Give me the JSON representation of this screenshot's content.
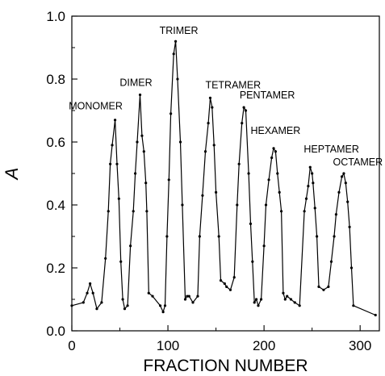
{
  "chart_data": {
    "type": "line",
    "xlabel": "FRACTION NUMBER",
    "ylabel": "A",
    "xlim": [
      0,
      320
    ],
    "ylim": [
      0,
      1.0
    ],
    "x_ticks": [
      0,
      100,
      200,
      300
    ],
    "x_tick_labels": [
      "0",
      "100",
      "200",
      "300"
    ],
    "y_ticks": [
      0,
      0.2,
      0.4,
      0.6,
      0.8,
      1.0
    ],
    "y_tick_labels": [
      "0.0",
      "0.2",
      "0.4",
      "0.6",
      "0.8",
      "1.0"
    ],
    "grid": false,
    "series": [
      {
        "x": [
          0,
          12,
          16,
          19,
          22,
          26,
          31,
          35,
          38,
          40,
          42,
          45,
          47,
          49,
          51,
          53,
          55,
          58,
          61,
          64,
          66,
          68,
          71,
          73,
          75,
          77,
          78,
          80,
          84,
          92,
          95,
          97,
          99,
          101,
          103,
          106,
          108,
          110,
          113,
          115,
          118,
          120,
          122,
          126,
          131,
          133,
          136,
          139,
          142,
          144,
          146,
          148,
          150,
          153,
          155,
          159,
          161,
          165,
          169,
          172,
          174,
          177,
          179,
          181,
          184,
          186,
          188,
          190,
          192,
          194,
          197,
          200,
          202,
          205,
          208,
          210,
          212,
          214,
          216,
          218,
          220,
          222,
          224,
          228,
          232,
          237,
          242,
          244,
          246,
          248,
          250,
          251,
          253,
          255,
          257,
          262,
          267,
          270,
          273,
          275,
          278,
          281,
          283,
          285,
          287,
          289,
          291,
          293,
          316
        ],
        "y": [
          0.08,
          0.09,
          0.12,
          0.15,
          0.12,
          0.07,
          0.09,
          0.23,
          0.38,
          0.53,
          0.59,
          0.67,
          0.53,
          0.42,
          0.22,
          0.1,
          0.07,
          0.08,
          0.27,
          0.38,
          0.5,
          0.6,
          0.75,
          0.62,
          0.57,
          0.47,
          0.38,
          0.12,
          0.11,
          0.08,
          0.06,
          0.08,
          0.3,
          0.48,
          0.69,
          0.88,
          0.92,
          0.8,
          0.6,
          0.4,
          0.1,
          0.11,
          0.11,
          0.09,
          0.11,
          0.3,
          0.43,
          0.57,
          0.66,
          0.74,
          0.71,
          0.59,
          0.44,
          0.3,
          0.16,
          0.15,
          0.14,
          0.13,
          0.17,
          0.4,
          0.53,
          0.66,
          0.71,
          0.7,
          0.5,
          0.34,
          0.22,
          0.09,
          0.1,
          0.08,
          0.1,
          0.27,
          0.4,
          0.48,
          0.55,
          0.58,
          0.57,
          0.5,
          0.44,
          0.38,
          0.12,
          0.1,
          0.11,
          0.1,
          0.09,
          0.08,
          0.38,
          0.42,
          0.46,
          0.52,
          0.5,
          0.47,
          0.39,
          0.3,
          0.14,
          0.13,
          0.14,
          0.22,
          0.3,
          0.37,
          0.44,
          0.49,
          0.5,
          0.47,
          0.41,
          0.33,
          0.2,
          0.08,
          0.05
        ]
      }
    ],
    "annotations": [
      {
        "text": "MONOMER",
        "x": 45,
        "y": 0.67
      },
      {
        "text": "DIMER",
        "x": 71,
        "y": 0.75
      },
      {
        "text": "TRIMER",
        "x": 108,
        "y": 0.92
      },
      {
        "text": "TETRAMER",
        "x": 146,
        "y": 0.74
      },
      {
        "text": "PENTAMER",
        "x": 179,
        "y": 0.71
      },
      {
        "text": "HEXAMER",
        "x": 212,
        "y": 0.58
      },
      {
        "text": "HEPTAMER",
        "x": 250,
        "y": 0.52
      },
      {
        "text": "OCTAMER",
        "x": 285,
        "y": 0.5
      }
    ]
  }
}
